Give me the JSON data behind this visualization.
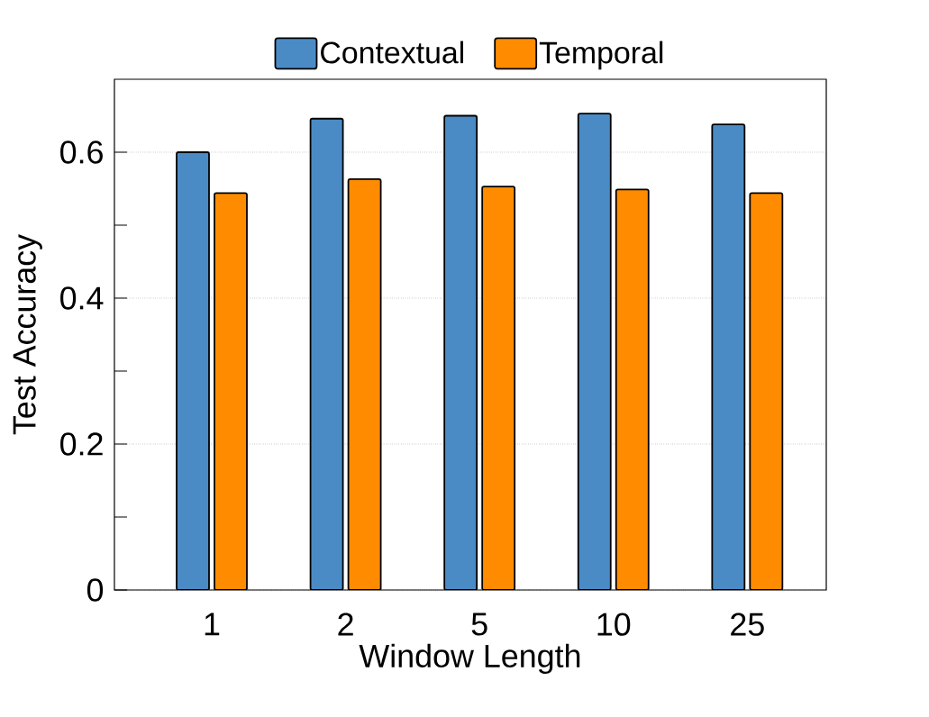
{
  "chart_data": {
    "type": "bar",
    "xlabel": "Window Length",
    "ylabel": "Test Accuracy",
    "categories": [
      "1",
      "2",
      "5",
      "10",
      "25"
    ],
    "series": [
      {
        "name": "Contextual",
        "color": "#4a8bc5",
        "values": [
          0.6,
          0.646,
          0.65,
          0.653,
          0.638
        ]
      },
      {
        "name": "Temporal",
        "color": "#ff8c00",
        "values": [
          0.544,
          0.563,
          0.553,
          0.549,
          0.544
        ]
      }
    ],
    "ylim": [
      0,
      0.7
    ],
    "yticks": [
      0,
      {
        "value": 0.1,
        "label": null
      },
      0.2,
      {
        "value": 0.3,
        "label": null
      },
      0.4,
      {
        "value": 0.5,
        "label": null
      },
      0.6
    ],
    "grid": "y",
    "legend": "top"
  }
}
